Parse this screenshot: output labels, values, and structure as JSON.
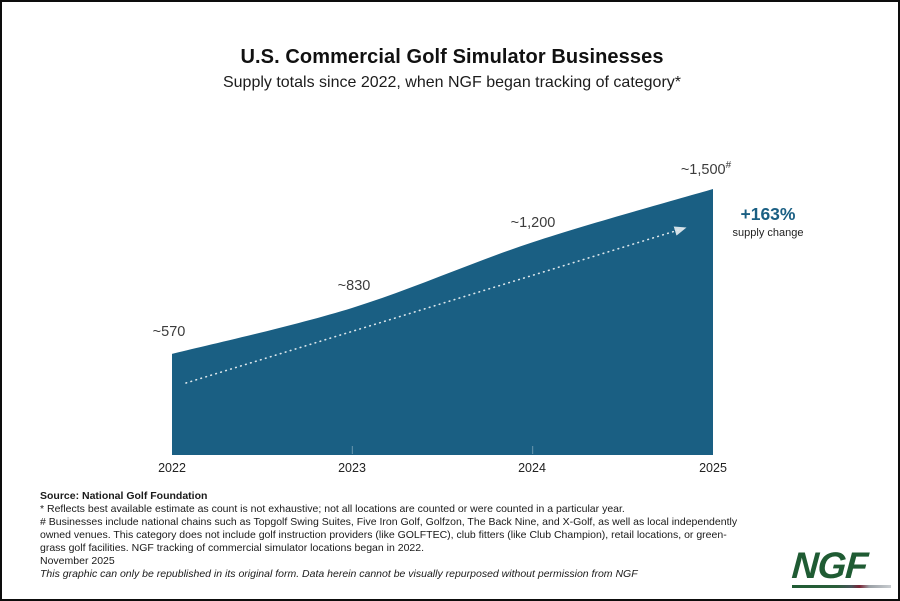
{
  "chart_data": {
    "type": "area",
    "title": "U.S. Commercial Golf Simulator Businesses",
    "subtitle": "Supply totals since 2022, when NGF began tracking of category*",
    "x": [
      "2022",
      "2023",
      "2024",
      "2025"
    ],
    "values": [
      570,
      830,
      1200,
      1500
    ],
    "point_labels": [
      "~570",
      "~830",
      "~1,200",
      "~1,500"
    ],
    "last_point_superscript": "#",
    "ylim": [
      0,
      1500
    ],
    "xlabel": "",
    "ylabel": "",
    "grid": false,
    "legend": false,
    "area_color": "#1a5f83",
    "trend_arrow_color": "#ffffff",
    "annotation": {
      "value": "+163%",
      "caption": "supply change"
    }
  },
  "footer": {
    "source": "Source: National Golf Foundation",
    "note_asterisk": "* Reflects best available estimate as count is not exhaustive; not all locations are counted or were counted in a particular year.",
    "note_hash": "# Businesses include national chains such as Topgolf Swing Suites, Five Iron Golf, Golfzon, The Back Nine, and X-Golf, as well as local independently owned venues. This category does not include golf instruction providers (like GOLFTEC), club fitters (like Club Champion), retail locations, or green-grass golf facilities. NGF tracking of commercial simulator locations began in 2022.",
    "date": "November 2025",
    "disclaimer": "This graphic can only be republished in its original form. Data herein cannot be visually repurposed without permission from NGF"
  },
  "logo": {
    "text": "NGF"
  }
}
